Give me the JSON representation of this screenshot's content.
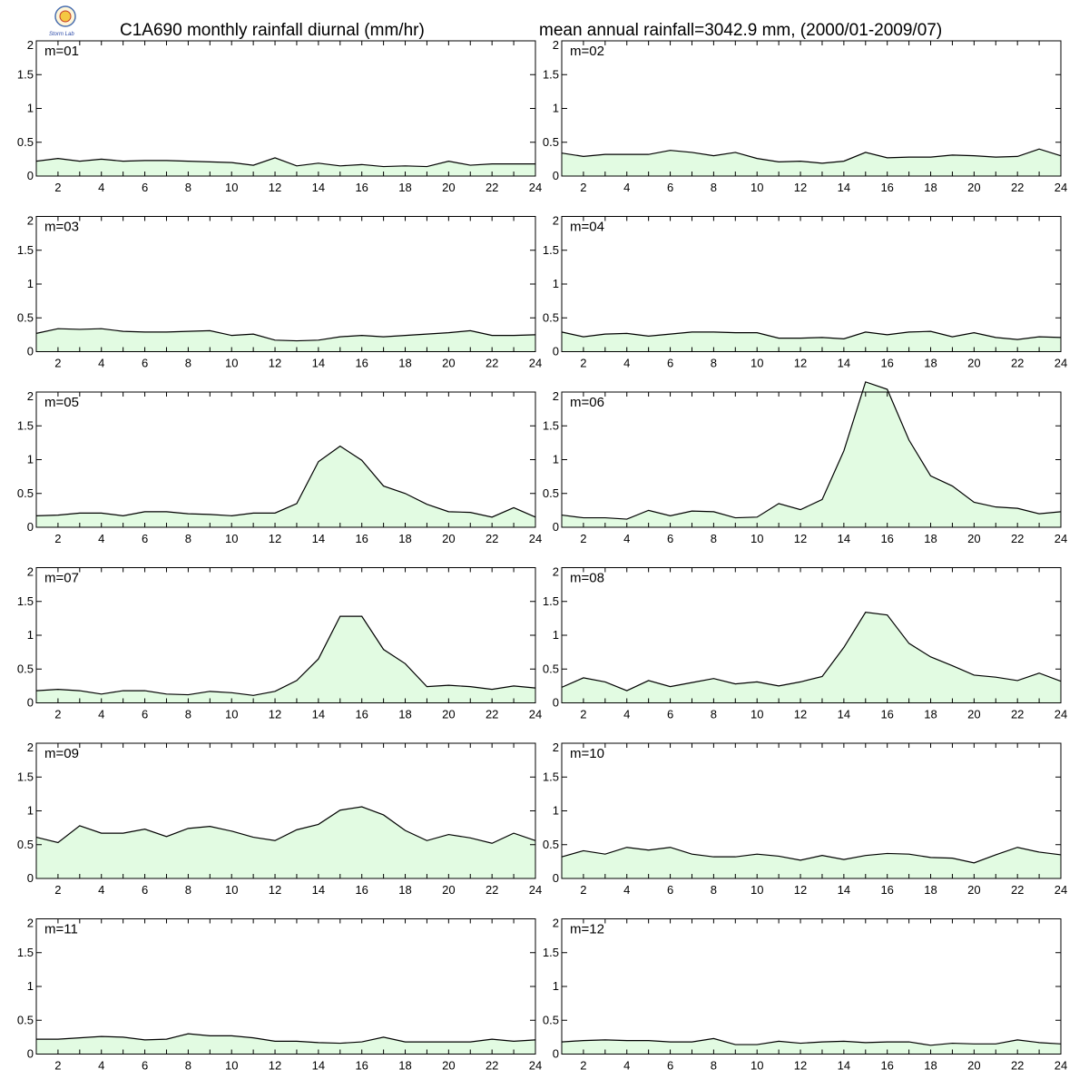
{
  "header": {
    "title_left": "C1A690 monthly rainfall diurnal (mm/hr)",
    "title_right": "mean annual rainfall=3042.9 mm, (2000/01-2009/07)",
    "logo_text": "Storm Lab"
  },
  "colors": {
    "fill": "#e2fbe2",
    "line": "#000000",
    "axis": "#000000"
  },
  "chart_data": {
    "type": "area",
    "x": [
      1,
      2,
      3,
      4,
      5,
      6,
      7,
      8,
      9,
      10,
      11,
      12,
      13,
      14,
      15,
      16,
      17,
      18,
      19,
      20,
      21,
      22,
      23,
      24
    ],
    "xlim": [
      1,
      24
    ],
    "ylim": [
      0,
      2
    ],
    "x_ticks": [
      "2",
      "4",
      "6",
      "8",
      "10",
      "12",
      "14",
      "16",
      "18",
      "20",
      "22",
      "24"
    ],
    "y_ticks": [
      "0",
      "0.5",
      "1",
      "1.5",
      "2"
    ],
    "grid": false,
    "panels": [
      {
        "label": "m=01",
        "values": [
          0.22,
          0.26,
          0.22,
          0.25,
          0.22,
          0.23,
          0.23,
          0.22,
          0.21,
          0.2,
          0.16,
          0.27,
          0.15,
          0.19,
          0.15,
          0.17,
          0.14,
          0.15,
          0.14,
          0.22,
          0.16,
          0.18,
          0.18,
          0.18
        ]
      },
      {
        "label": "m=02",
        "values": [
          0.34,
          0.29,
          0.32,
          0.32,
          0.32,
          0.38,
          0.35,
          0.3,
          0.35,
          0.26,
          0.21,
          0.22,
          0.19,
          0.22,
          0.35,
          0.27,
          0.28,
          0.28,
          0.31,
          0.3,
          0.28,
          0.29,
          0.4,
          0.3
        ]
      },
      {
        "label": "m=03",
        "values": [
          0.27,
          0.34,
          0.33,
          0.34,
          0.3,
          0.29,
          0.29,
          0.3,
          0.31,
          0.24,
          0.26,
          0.17,
          0.16,
          0.17,
          0.22,
          0.24,
          0.22,
          0.24,
          0.26,
          0.28,
          0.31,
          0.24,
          0.24,
          0.25
        ]
      },
      {
        "label": "m=04",
        "values": [
          0.29,
          0.22,
          0.26,
          0.27,
          0.23,
          0.26,
          0.29,
          0.29,
          0.28,
          0.28,
          0.2,
          0.2,
          0.21,
          0.19,
          0.29,
          0.25,
          0.29,
          0.3,
          0.22,
          0.28,
          0.21,
          0.18,
          0.22,
          0.21
        ]
      },
      {
        "label": "m=05",
        "values": [
          0.17,
          0.18,
          0.21,
          0.21,
          0.17,
          0.23,
          0.23,
          0.2,
          0.19,
          0.17,
          0.21,
          0.21,
          0.35,
          0.97,
          1.2,
          0.99,
          0.61,
          0.5,
          0.34,
          0.23,
          0.22,
          0.15,
          0.29,
          0.15
        ]
      },
      {
        "label": "m=06",
        "values": [
          0.18,
          0.14,
          0.14,
          0.12,
          0.25,
          0.17,
          0.24,
          0.23,
          0.14,
          0.15,
          0.35,
          0.26,
          0.41,
          1.13,
          2.15,
          2.04,
          1.29,
          0.76,
          0.61,
          0.37,
          0.3,
          0.28,
          0.2,
          0.23
        ]
      },
      {
        "label": "m=07",
        "values": [
          0.18,
          0.2,
          0.18,
          0.13,
          0.18,
          0.18,
          0.13,
          0.12,
          0.17,
          0.15,
          0.11,
          0.17,
          0.33,
          0.65,
          1.28,
          1.28,
          0.79,
          0.58,
          0.24,
          0.26,
          0.24,
          0.2,
          0.25,
          0.22
        ]
      },
      {
        "label": "m=08",
        "values": [
          0.23,
          0.37,
          0.31,
          0.18,
          0.33,
          0.24,
          0.3,
          0.36,
          0.28,
          0.31,
          0.25,
          0.31,
          0.39,
          0.82,
          1.34,
          1.3,
          0.88,
          0.68,
          0.55,
          0.41,
          0.38,
          0.33,
          0.44,
          0.32
        ]
      },
      {
        "label": "m=09",
        "values": [
          0.61,
          0.53,
          0.78,
          0.67,
          0.67,
          0.73,
          0.62,
          0.74,
          0.77,
          0.7,
          0.61,
          0.56,
          0.72,
          0.8,
          1.01,
          1.06,
          0.94,
          0.71,
          0.56,
          0.65,
          0.6,
          0.52,
          0.67,
          0.56
        ]
      },
      {
        "label": "m=10",
        "values": [
          0.32,
          0.41,
          0.36,
          0.46,
          0.42,
          0.46,
          0.36,
          0.32,
          0.32,
          0.36,
          0.33,
          0.27,
          0.34,
          0.28,
          0.34,
          0.37,
          0.36,
          0.31,
          0.3,
          0.23,
          0.35,
          0.46,
          0.39,
          0.35
        ]
      },
      {
        "label": "m=11",
        "values": [
          0.22,
          0.22,
          0.24,
          0.26,
          0.25,
          0.21,
          0.22,
          0.3,
          0.27,
          0.27,
          0.24,
          0.19,
          0.19,
          0.17,
          0.16,
          0.18,
          0.25,
          0.18,
          0.18,
          0.18,
          0.18,
          0.22,
          0.19,
          0.21
        ]
      },
      {
        "label": "m=12",
        "values": [
          0.18,
          0.2,
          0.21,
          0.2,
          0.2,
          0.18,
          0.18,
          0.23,
          0.14,
          0.14,
          0.19,
          0.16,
          0.18,
          0.19,
          0.17,
          0.18,
          0.18,
          0.13,
          0.16,
          0.15,
          0.15,
          0.21,
          0.17,
          0.15
        ]
      }
    ]
  }
}
